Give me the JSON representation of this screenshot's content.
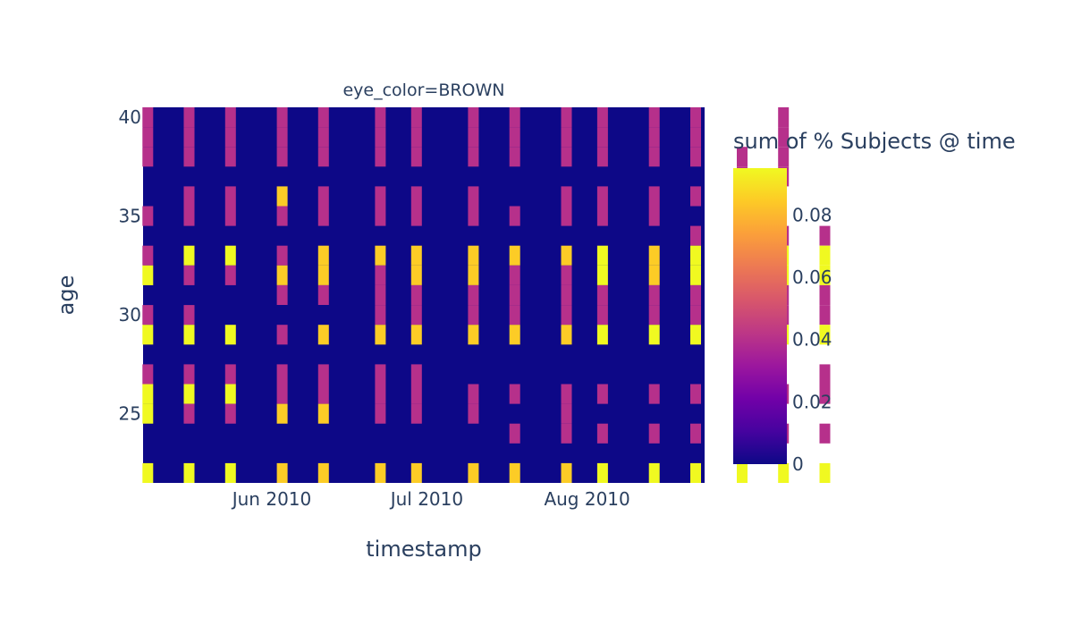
{
  "chart_data": {
    "type": "heatmap",
    "facet_title": "eye_color=BROWN",
    "xlabel": "timestamp",
    "ylabel": "age",
    "colorbar_title": "sum of % Subjects @ time",
    "x_ticks": [
      {
        "label": "Jun 2010",
        "date": "2010-06-01"
      },
      {
        "label": "Jul 2010",
        "date": "2010-07-01"
      },
      {
        "label": "Aug 2010",
        "date": "2010-08-01"
      }
    ],
    "y_ticks": [
      25,
      30,
      35,
      40
    ],
    "ylim": [
      21.5,
      40.5
    ],
    "colorbar": {
      "min": 0,
      "max": 0.095,
      "ticks": [
        0,
        0.02,
        0.04,
        0.06,
        0.08
      ]
    },
    "colorscale": [
      "#0d0887",
      "#46039f",
      "#7201a8",
      "#9c179e",
      "#bd3786",
      "#d8576b",
      "#ed7953",
      "#fb9f3a",
      "#fdca26",
      "#f0f921"
    ],
    "dates": [
      "2010-05-08",
      "2010-05-16",
      "2010-05-24",
      "2010-06-03",
      "2010-06-11",
      "2010-06-22",
      "2010-06-29",
      "2010-07-10",
      "2010-07-18",
      "2010-07-28",
      "2010-08-04",
      "2010-08-14",
      "2010-08-22",
      "2010-08-31",
      "2010-09-08",
      "2010-09-16"
    ],
    "cells": [
      {
        "date": "2010-05-08",
        "age": 40,
        "value": 0.04
      },
      {
        "date": "2010-05-08",
        "age": 39,
        "value": 0.04
      },
      {
        "date": "2010-05-08",
        "age": 38,
        "value": 0.04
      },
      {
        "date": "2010-05-08",
        "age": 35,
        "value": 0.04
      },
      {
        "date": "2010-05-08",
        "age": 33,
        "value": 0.04
      },
      {
        "date": "2010-05-08",
        "age": 32,
        "value": 0.095
      },
      {
        "date": "2010-05-08",
        "age": 30,
        "value": 0.04
      },
      {
        "date": "2010-05-08",
        "age": 29,
        "value": 0.095
      },
      {
        "date": "2010-05-08",
        "age": 27,
        "value": 0.04
      },
      {
        "date": "2010-05-08",
        "age": 26,
        "value": 0.095
      },
      {
        "date": "2010-05-08",
        "age": 25,
        "value": 0.095
      },
      {
        "date": "2010-05-08",
        "age": 22,
        "value": 0.095
      },
      {
        "date": "2010-05-16",
        "age": 40,
        "value": 0.04
      },
      {
        "date": "2010-05-16",
        "age": 39,
        "value": 0.04
      },
      {
        "date": "2010-05-16",
        "age": 38,
        "value": 0.04
      },
      {
        "date": "2010-05-16",
        "age": 36,
        "value": 0.04
      },
      {
        "date": "2010-05-16",
        "age": 35,
        "value": 0.04
      },
      {
        "date": "2010-05-16",
        "age": 33,
        "value": 0.095
      },
      {
        "date": "2010-05-16",
        "age": 32,
        "value": 0.04
      },
      {
        "date": "2010-05-16",
        "age": 30,
        "value": 0.04
      },
      {
        "date": "2010-05-16",
        "age": 29,
        "value": 0.095
      },
      {
        "date": "2010-05-16",
        "age": 27,
        "value": 0.04
      },
      {
        "date": "2010-05-16",
        "age": 26,
        "value": 0.095
      },
      {
        "date": "2010-05-16",
        "age": 25,
        "value": 0.04
      },
      {
        "date": "2010-05-16",
        "age": 22,
        "value": 0.095
      },
      {
        "date": "2010-05-24",
        "age": 40,
        "value": 0.04
      },
      {
        "date": "2010-05-24",
        "age": 39,
        "value": 0.04
      },
      {
        "date": "2010-05-24",
        "age": 38,
        "value": 0.04
      },
      {
        "date": "2010-05-24",
        "age": 36,
        "value": 0.04
      },
      {
        "date": "2010-05-24",
        "age": 35,
        "value": 0.04
      },
      {
        "date": "2010-05-24",
        "age": 33,
        "value": 0.095
      },
      {
        "date": "2010-05-24",
        "age": 32,
        "value": 0.04
      },
      {
        "date": "2010-05-24",
        "age": 29,
        "value": 0.095
      },
      {
        "date": "2010-05-24",
        "age": 27,
        "value": 0.04
      },
      {
        "date": "2010-05-24",
        "age": 26,
        "value": 0.095
      },
      {
        "date": "2010-05-24",
        "age": 25,
        "value": 0.04
      },
      {
        "date": "2010-05-24",
        "age": 22,
        "value": 0.095
      },
      {
        "date": "2010-06-03",
        "age": 40,
        "value": 0.04
      },
      {
        "date": "2010-06-03",
        "age": 39,
        "value": 0.04
      },
      {
        "date": "2010-06-03",
        "age": 38,
        "value": 0.04
      },
      {
        "date": "2010-06-03",
        "age": 36,
        "value": 0.085
      },
      {
        "date": "2010-06-03",
        "age": 35,
        "value": 0.04
      },
      {
        "date": "2010-06-03",
        "age": 33,
        "value": 0.04
      },
      {
        "date": "2010-06-03",
        "age": 32,
        "value": 0.085
      },
      {
        "date": "2010-06-03",
        "age": 31,
        "value": 0.04
      },
      {
        "date": "2010-06-03",
        "age": 29,
        "value": 0.04
      },
      {
        "date": "2010-06-03",
        "age": 27,
        "value": 0.04
      },
      {
        "date": "2010-06-03",
        "age": 26,
        "value": 0.04
      },
      {
        "date": "2010-06-03",
        "age": 25,
        "value": 0.085
      },
      {
        "date": "2010-06-03",
        "age": 22,
        "value": 0.085
      },
      {
        "date": "2010-06-11",
        "age": 40,
        "value": 0.04
      },
      {
        "date": "2010-06-11",
        "age": 39,
        "value": 0.04
      },
      {
        "date": "2010-06-11",
        "age": 38,
        "value": 0.04
      },
      {
        "date": "2010-06-11",
        "age": 36,
        "value": 0.04
      },
      {
        "date": "2010-06-11",
        "age": 35,
        "value": 0.04
      },
      {
        "date": "2010-06-11",
        "age": 33,
        "value": 0.085
      },
      {
        "date": "2010-06-11",
        "age": 32,
        "value": 0.085
      },
      {
        "date": "2010-06-11",
        "age": 31,
        "value": 0.04
      },
      {
        "date": "2010-06-11",
        "age": 29,
        "value": 0.085
      },
      {
        "date": "2010-06-11",
        "age": 27,
        "value": 0.04
      },
      {
        "date": "2010-06-11",
        "age": 26,
        "value": 0.04
      },
      {
        "date": "2010-06-11",
        "age": 25,
        "value": 0.085
      },
      {
        "date": "2010-06-11",
        "age": 22,
        "value": 0.085
      },
      {
        "date": "2010-06-22",
        "age": 40,
        "value": 0.04
      },
      {
        "date": "2010-06-22",
        "age": 39,
        "value": 0.04
      },
      {
        "date": "2010-06-22",
        "age": 38,
        "value": 0.04
      },
      {
        "date": "2010-06-22",
        "age": 36,
        "value": 0.04
      },
      {
        "date": "2010-06-22",
        "age": 35,
        "value": 0.04
      },
      {
        "date": "2010-06-22",
        "age": 33,
        "value": 0.085
      },
      {
        "date": "2010-06-22",
        "age": 32,
        "value": 0.04
      },
      {
        "date": "2010-06-22",
        "age": 31,
        "value": 0.04
      },
      {
        "date": "2010-06-22",
        "age": 30,
        "value": 0.04
      },
      {
        "date": "2010-06-22",
        "age": 29,
        "value": 0.085
      },
      {
        "date": "2010-06-22",
        "age": 27,
        "value": 0.04
      },
      {
        "date": "2010-06-22",
        "age": 26,
        "value": 0.04
      },
      {
        "date": "2010-06-22",
        "age": 25,
        "value": 0.04
      },
      {
        "date": "2010-06-22",
        "age": 22,
        "value": 0.085
      },
      {
        "date": "2010-06-29",
        "age": 40,
        "value": 0.04
      },
      {
        "date": "2010-06-29",
        "age": 39,
        "value": 0.04
      },
      {
        "date": "2010-06-29",
        "age": 38,
        "value": 0.04
      },
      {
        "date": "2010-06-29",
        "age": 36,
        "value": 0.04
      },
      {
        "date": "2010-06-29",
        "age": 35,
        "value": 0.04
      },
      {
        "date": "2010-06-29",
        "age": 33,
        "value": 0.085
      },
      {
        "date": "2010-06-29",
        "age": 32,
        "value": 0.085
      },
      {
        "date": "2010-06-29",
        "age": 31,
        "value": 0.04
      },
      {
        "date": "2010-06-29",
        "age": 30,
        "value": 0.04
      },
      {
        "date": "2010-06-29",
        "age": 29,
        "value": 0.085
      },
      {
        "date": "2010-06-29",
        "age": 27,
        "value": 0.04
      },
      {
        "date": "2010-06-29",
        "age": 26,
        "value": 0.04
      },
      {
        "date": "2010-06-29",
        "age": 25,
        "value": 0.04
      },
      {
        "date": "2010-06-29",
        "age": 22,
        "value": 0.085
      },
      {
        "date": "2010-07-10",
        "age": 40,
        "value": 0.04
      },
      {
        "date": "2010-07-10",
        "age": 39,
        "value": 0.04
      },
      {
        "date": "2010-07-10",
        "age": 38,
        "value": 0.04
      },
      {
        "date": "2010-07-10",
        "age": 36,
        "value": 0.04
      },
      {
        "date": "2010-07-10",
        "age": 35,
        "value": 0.04
      },
      {
        "date": "2010-07-10",
        "age": 33,
        "value": 0.085
      },
      {
        "date": "2010-07-10",
        "age": 32,
        "value": 0.085
      },
      {
        "date": "2010-07-10",
        "age": 31,
        "value": 0.04
      },
      {
        "date": "2010-07-10",
        "age": 30,
        "value": 0.04
      },
      {
        "date": "2010-07-10",
        "age": 29,
        "value": 0.085
      },
      {
        "date": "2010-07-10",
        "age": 26,
        "value": 0.04
      },
      {
        "date": "2010-07-10",
        "age": 25,
        "value": 0.04
      },
      {
        "date": "2010-07-10",
        "age": 22,
        "value": 0.085
      },
      {
        "date": "2010-07-18",
        "age": 40,
        "value": 0.04
      },
      {
        "date": "2010-07-18",
        "age": 39,
        "value": 0.04
      },
      {
        "date": "2010-07-18",
        "age": 38,
        "value": 0.04
      },
      {
        "date": "2010-07-18",
        "age": 35,
        "value": 0.04
      },
      {
        "date": "2010-07-18",
        "age": 33,
        "value": 0.085
      },
      {
        "date": "2010-07-18",
        "age": 32,
        "value": 0.04
      },
      {
        "date": "2010-07-18",
        "age": 31,
        "value": 0.04
      },
      {
        "date": "2010-07-18",
        "age": 30,
        "value": 0.04
      },
      {
        "date": "2010-07-18",
        "age": 29,
        "value": 0.085
      },
      {
        "date": "2010-07-18",
        "age": 26,
        "value": 0.04
      },
      {
        "date": "2010-07-18",
        "age": 24,
        "value": 0.04
      },
      {
        "date": "2010-07-18",
        "age": 22,
        "value": 0.085
      },
      {
        "date": "2010-07-28",
        "age": 40,
        "value": 0.04
      },
      {
        "date": "2010-07-28",
        "age": 39,
        "value": 0.04
      },
      {
        "date": "2010-07-28",
        "age": 38,
        "value": 0.04
      },
      {
        "date": "2010-07-28",
        "age": 36,
        "value": 0.04
      },
      {
        "date": "2010-07-28",
        "age": 35,
        "value": 0.04
      },
      {
        "date": "2010-07-28",
        "age": 33,
        "value": 0.085
      },
      {
        "date": "2010-07-28",
        "age": 32,
        "value": 0.04
      },
      {
        "date": "2010-07-28",
        "age": 31,
        "value": 0.04
      },
      {
        "date": "2010-07-28",
        "age": 30,
        "value": 0.04
      },
      {
        "date": "2010-07-28",
        "age": 29,
        "value": 0.085
      },
      {
        "date": "2010-07-28",
        "age": 26,
        "value": 0.04
      },
      {
        "date": "2010-07-28",
        "age": 25,
        "value": 0.04
      },
      {
        "date": "2010-07-28",
        "age": 24,
        "value": 0.04
      },
      {
        "date": "2010-07-28",
        "age": 22,
        "value": 0.085
      },
      {
        "date": "2010-08-04",
        "age": 40,
        "value": 0.04
      },
      {
        "date": "2010-08-04",
        "age": 39,
        "value": 0.04
      },
      {
        "date": "2010-08-04",
        "age": 38,
        "value": 0.04
      },
      {
        "date": "2010-08-04",
        "age": 36,
        "value": 0.04
      },
      {
        "date": "2010-08-04",
        "age": 35,
        "value": 0.04
      },
      {
        "date": "2010-08-04",
        "age": 33,
        "value": 0.095
      },
      {
        "date": "2010-08-04",
        "age": 32,
        "value": 0.095
      },
      {
        "date": "2010-08-04",
        "age": 31,
        "value": 0.04
      },
      {
        "date": "2010-08-04",
        "age": 30,
        "value": 0.04
      },
      {
        "date": "2010-08-04",
        "age": 29,
        "value": 0.095
      },
      {
        "date": "2010-08-04",
        "age": 26,
        "value": 0.04
      },
      {
        "date": "2010-08-04",
        "age": 24,
        "value": 0.04
      },
      {
        "date": "2010-08-04",
        "age": 22,
        "value": 0.095
      },
      {
        "date": "2010-08-14",
        "age": 40,
        "value": 0.04
      },
      {
        "date": "2010-08-14",
        "age": 39,
        "value": 0.04
      },
      {
        "date": "2010-08-14",
        "age": 38,
        "value": 0.04
      },
      {
        "date": "2010-08-14",
        "age": 36,
        "value": 0.04
      },
      {
        "date": "2010-08-14",
        "age": 35,
        "value": 0.04
      },
      {
        "date": "2010-08-14",
        "age": 33,
        "value": 0.085
      },
      {
        "date": "2010-08-14",
        "age": 32,
        "value": 0.085
      },
      {
        "date": "2010-08-14",
        "age": 31,
        "value": 0.04
      },
      {
        "date": "2010-08-14",
        "age": 30,
        "value": 0.04
      },
      {
        "date": "2010-08-14",
        "age": 29,
        "value": 0.095
      },
      {
        "date": "2010-08-14",
        "age": 26,
        "value": 0.04
      },
      {
        "date": "2010-08-14",
        "age": 24,
        "value": 0.04
      },
      {
        "date": "2010-08-14",
        "age": 22,
        "value": 0.095
      },
      {
        "date": "2010-08-22",
        "age": 40,
        "value": 0.04
      },
      {
        "date": "2010-08-22",
        "age": 39,
        "value": 0.04
      },
      {
        "date": "2010-08-22",
        "age": 38,
        "value": 0.04
      },
      {
        "date": "2010-08-22",
        "age": 36,
        "value": 0.04
      },
      {
        "date": "2010-08-22",
        "age": 34,
        "value": 0.04
      },
      {
        "date": "2010-08-22",
        "age": 33,
        "value": 0.095
      },
      {
        "date": "2010-08-22",
        "age": 32,
        "value": 0.095
      },
      {
        "date": "2010-08-22",
        "age": 31,
        "value": 0.04
      },
      {
        "date": "2010-08-22",
        "age": 30,
        "value": 0.04
      },
      {
        "date": "2010-08-22",
        "age": 29,
        "value": 0.095
      },
      {
        "date": "2010-08-22",
        "age": 26,
        "value": 0.04
      },
      {
        "date": "2010-08-22",
        "age": 24,
        "value": 0.04
      },
      {
        "date": "2010-08-22",
        "age": 22,
        "value": 0.095
      },
      {
        "date": "2010-08-31",
        "age": 38,
        "value": 0.04
      },
      {
        "date": "2010-08-31",
        "age": 37,
        "value": 0.04
      },
      {
        "date": "2010-08-31",
        "age": 34,
        "value": 0.04
      },
      {
        "date": "2010-08-31",
        "age": 33,
        "value": 0.095
      },
      {
        "date": "2010-08-31",
        "age": 32,
        "value": 0.095
      },
      {
        "date": "2010-08-31",
        "age": 31,
        "value": 0.04
      },
      {
        "date": "2010-08-31",
        "age": 30,
        "value": 0.04
      },
      {
        "date": "2010-08-31",
        "age": 29,
        "value": 0.095
      },
      {
        "date": "2010-08-31",
        "age": 26,
        "value": 0.04
      },
      {
        "date": "2010-08-31",
        "age": 24,
        "value": 0.04
      },
      {
        "date": "2010-08-31",
        "age": 22,
        "value": 0.095
      },
      {
        "date": "2010-09-08",
        "age": 40,
        "value": 0.04
      },
      {
        "date": "2010-09-08",
        "age": 39,
        "value": 0.04
      },
      {
        "date": "2010-09-08",
        "age": 38,
        "value": 0.04
      },
      {
        "date": "2010-09-08",
        "age": 37,
        "value": 0.04
      },
      {
        "date": "2010-09-08",
        "age": 34,
        "value": 0.04
      },
      {
        "date": "2010-09-08",
        "age": 33,
        "value": 0.095
      },
      {
        "date": "2010-09-08",
        "age": 32,
        "value": 0.095
      },
      {
        "date": "2010-09-08",
        "age": 31,
        "value": 0.04
      },
      {
        "date": "2010-09-08",
        "age": 30,
        "value": 0.04
      },
      {
        "date": "2010-09-08",
        "age": 29,
        "value": 0.095
      },
      {
        "date": "2010-09-08",
        "age": 26,
        "value": 0.04
      },
      {
        "date": "2010-09-08",
        "age": 24,
        "value": 0.04
      },
      {
        "date": "2010-09-08",
        "age": 22,
        "value": 0.095
      },
      {
        "date": "2010-09-16",
        "age": 34,
        "value": 0.04
      },
      {
        "date": "2010-09-16",
        "age": 33,
        "value": 0.095
      },
      {
        "date": "2010-09-16",
        "age": 32,
        "value": 0.095
      },
      {
        "date": "2010-09-16",
        "age": 31,
        "value": 0.04
      },
      {
        "date": "2010-09-16",
        "age": 30,
        "value": 0.04
      },
      {
        "date": "2010-09-16",
        "age": 29,
        "value": 0.095
      },
      {
        "date": "2010-09-16",
        "age": 27,
        "value": 0.04
      },
      {
        "date": "2010-09-16",
        "age": 26,
        "value": 0.04
      },
      {
        "date": "2010-09-16",
        "age": 24,
        "value": 0.04
      },
      {
        "date": "2010-09-16",
        "age": 22,
        "value": 0.095
      }
    ]
  }
}
